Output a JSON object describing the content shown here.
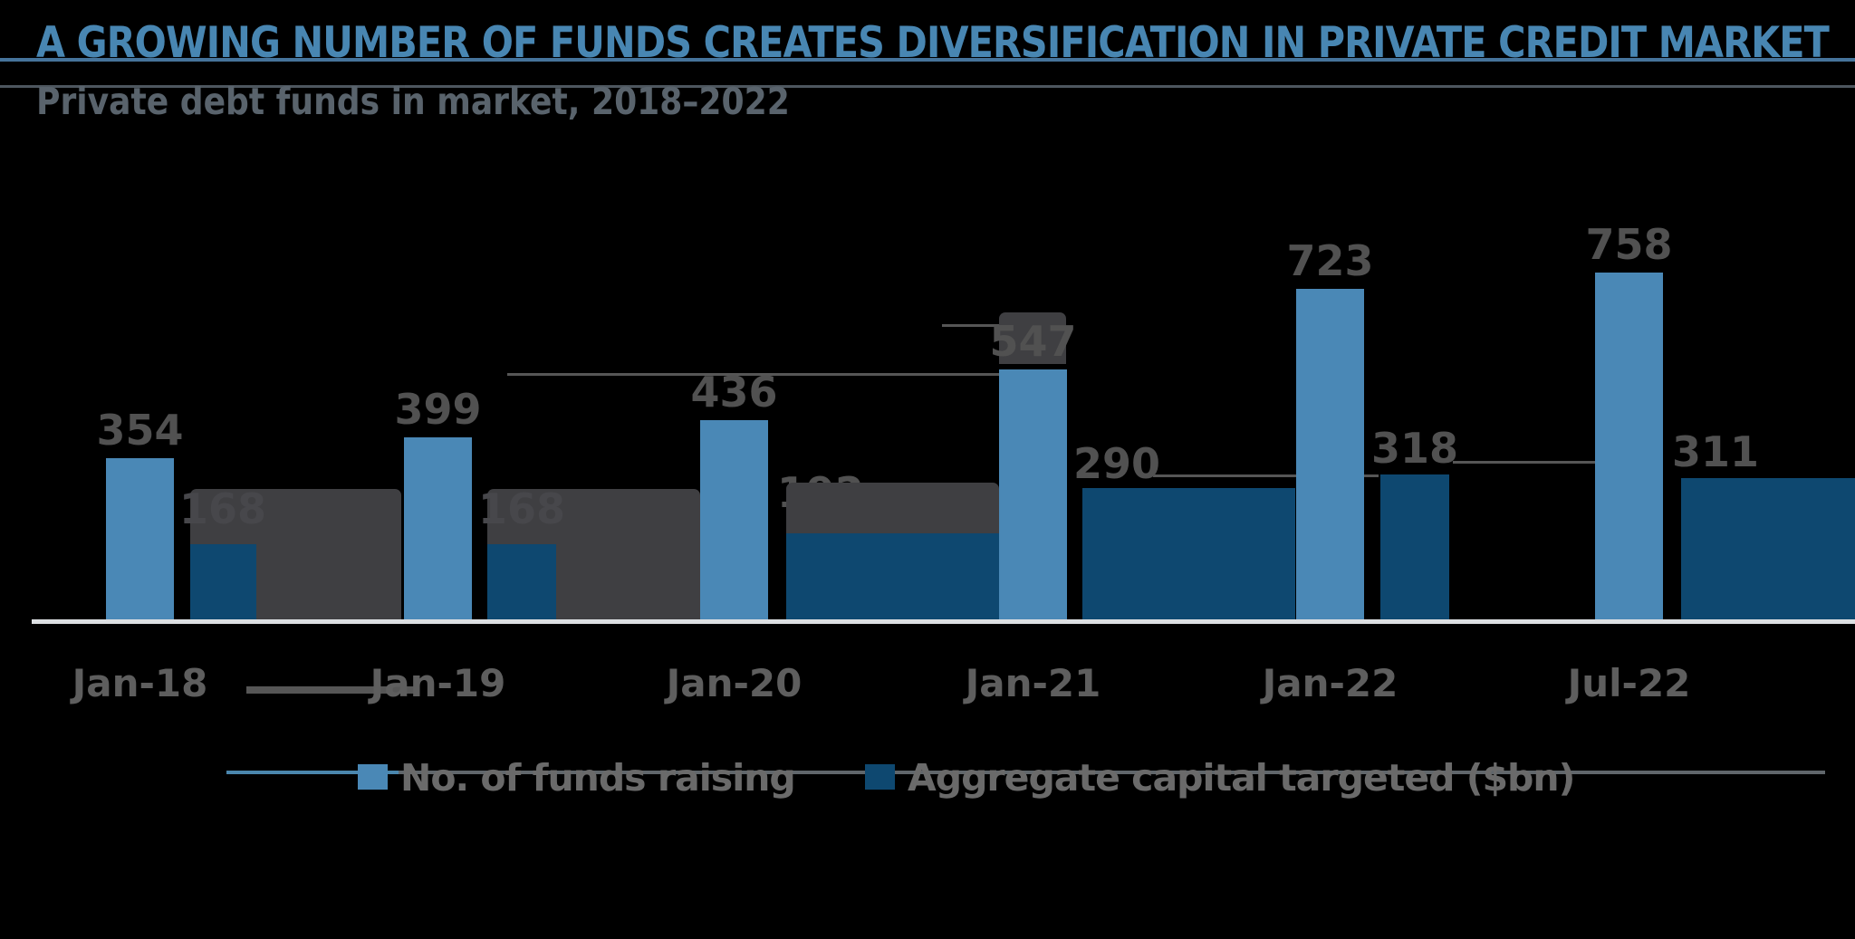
{
  "title": "A GROWING NUMBER OF FUNDS CREATES DIVERSIFICATION IN PRIVATE CREDIT MARKET",
  "subtitle": "Private debt funds in market, 2018–2022",
  "legend": {
    "items": [
      {
        "label": "No. of funds raising",
        "color": "#4a88b6"
      },
      {
        "label": "Aggregate capital targeted ($bn)",
        "color": "#0e4870"
      }
    ],
    "position": "bottom"
  },
  "colors": {
    "background": "#000000",
    "title_text": "#4886b2",
    "subtitle_text": "#59636c",
    "funds_bar": "#4a88b6",
    "capital_bar": "#0e4870",
    "value_label": "#515151",
    "axis_label": "#5e5e5e",
    "legend_text": "#6a6a6a",
    "overlay_box": "#3f3f42",
    "baseline": "#dde0e3",
    "artifact_line": "#565656",
    "title_underline": "#46749b",
    "header_divider": "#4d565e",
    "legend_line_blue": "#4a86ad",
    "legend_line_gray": "#60666b"
  },
  "chart_data": {
    "type": "bar",
    "title": "A GROWING NUMBER OF FUNDS CREATES DIVERSIFICATION IN PRIVATE CREDIT MARKET",
    "subtitle": "Private debt funds in market, 2018–2022",
    "categories": [
      "Jan-18",
      "Jan-19",
      "Jan-20",
      "Jan-21",
      "Jan-22",
      "Jul-22"
    ],
    "series": [
      {
        "name": "No. of funds raising",
        "color": "#4a88b6",
        "values": [
          354,
          399,
          436,
          547,
          723,
          758
        ],
        "labels": [
          "354",
          "399",
          "436",
          "547",
          "723",
          "758"
        ]
      },
      {
        "name": "Aggregate capital targeted ($bn)",
        "color": "#0e4870",
        "values": [
          168,
          168,
          192,
          290,
          318,
          311
        ],
        "labels": [
          "168",
          "168",
          "192",
          "290",
          "318",
          "311"
        ],
        "label_visibility": [
          "obscured",
          "obscured",
          "partial",
          "visible",
          "visible",
          "visible"
        ]
      }
    ],
    "xlabel": "",
    "ylabel": "",
    "ylim": [
      0,
      800
    ],
    "grid": false,
    "y_axis_visible": false,
    "baseline_visible": true,
    "legend_position": "bottom"
  }
}
